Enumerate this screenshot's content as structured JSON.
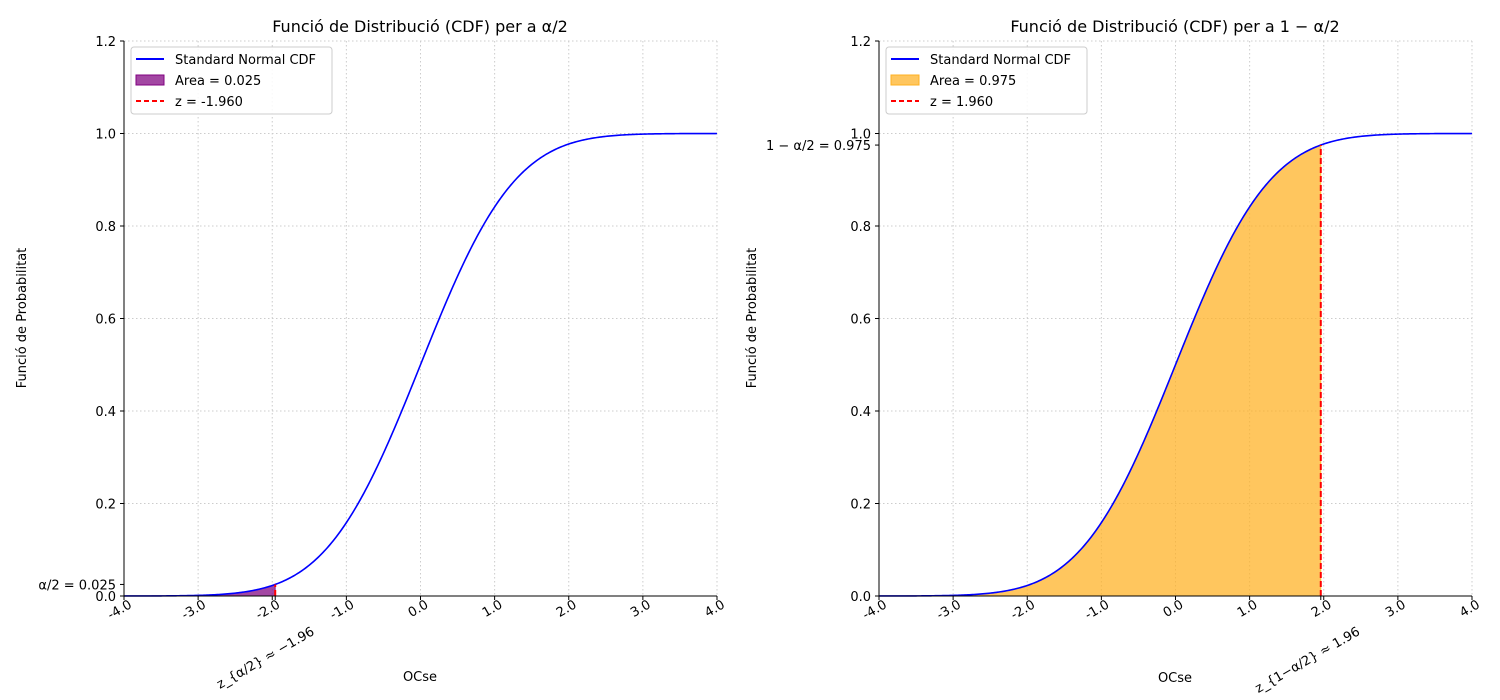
{
  "chart_data": [
    {
      "type": "line",
      "title": "Funció de Distribució (CDF) per a α/2",
      "xlabel": "OCse",
      "ylabel": "Funció de Probabilitat",
      "xlim": [
        -4,
        4
      ],
      "ylim": [
        0,
        1.2
      ],
      "xticks": [
        "-4.0",
        "-3.0",
        "-2.0",
        "-1.0",
        "0.0",
        "1.0",
        "2.0",
        "3.0",
        "4.0"
      ],
      "yticks": [
        "0.0",
        "0.2",
        "0.4",
        "0.6",
        "0.8",
        "1.0",
        "1.2"
      ],
      "grid": true,
      "legend_position": "top-left",
      "series": [
        {
          "name": "Standard Normal CDF",
          "function": "standard-normal-cdf",
          "color": "#0000ff",
          "style": "solid"
        }
      ],
      "shaded_area": {
        "label": "Area = 0.025",
        "from": -4,
        "to": -1.96,
        "value": 0.025,
        "color": "#800080"
      },
      "critical_line": {
        "label": "z = -1.960",
        "x": -1.96,
        "color": "#ff0000",
        "style": "dashed"
      },
      "y_annotation": {
        "label": "α/2 = 0.025",
        "value": 0.025
      },
      "x_annotation": {
        "label": "z_{α/2} ≈ −1.96",
        "value": -1.96
      }
    },
    {
      "type": "line",
      "title": "Funció de Distribució (CDF) per a 1 − α/2",
      "xlabel": "OCse",
      "ylabel": "Funció de Probabilitat",
      "xlim": [
        -4,
        4
      ],
      "ylim": [
        0,
        1.2
      ],
      "xticks": [
        "-4.0",
        "-3.0",
        "-2.0",
        "-1.0",
        "0.0",
        "1.0",
        "2.0",
        "3.0",
        "4.0"
      ],
      "yticks": [
        "0.0",
        "0.2",
        "0.4",
        "0.6",
        "0.8",
        "1.0",
        "1.2"
      ],
      "grid": true,
      "legend_position": "top-left",
      "series": [
        {
          "name": "Standard Normal CDF",
          "function": "standard-normal-cdf",
          "color": "#0000ff",
          "style": "solid"
        }
      ],
      "shaded_area": {
        "label": "Area = 0.975",
        "from": -4,
        "to": 1.96,
        "value": 0.975,
        "color": "#ffb020"
      },
      "critical_line": {
        "label": "z = 1.960",
        "x": 1.96,
        "color": "#ff0000",
        "style": "dashed"
      },
      "y_annotation": {
        "label": "1 − α/2 = 0.975",
        "value": 0.975
      },
      "x_annotation": {
        "label": "z_{1−α/2} ≈ 1.96",
        "value": 1.96
      }
    }
  ]
}
